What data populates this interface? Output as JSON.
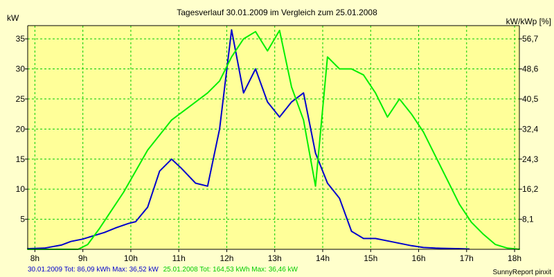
{
  "chart_data": {
    "type": "line",
    "title": "Tagesverlauf 30.01.2009 im Vergleich zum 25.01.2008",
    "ylabel_left": "kW",
    "ylabel_right": "kW/kWp [%]",
    "x_range": [
      7.85,
      18.1
    ],
    "ylim": [
      0,
      37.2
    ],
    "x_ticks": [
      {
        "value": 8,
        "label": "8h"
      },
      {
        "value": 9,
        "label": "9h"
      },
      {
        "value": 10,
        "label": "10h"
      },
      {
        "value": 11,
        "label": "11h"
      },
      {
        "value": 12,
        "label": "12h"
      },
      {
        "value": 13,
        "label": "13h"
      },
      {
        "value": 14,
        "label": "14h"
      },
      {
        "value": 15,
        "label": "15h"
      },
      {
        "value": 16,
        "label": "16h"
      },
      {
        "value": 17,
        "label": "17h"
      },
      {
        "value": 18,
        "label": "18h"
      }
    ],
    "y_ticks_left": [
      {
        "value": 5,
        "label": "5"
      },
      {
        "value": 10,
        "label": "10"
      },
      {
        "value": 15,
        "label": "15"
      },
      {
        "value": 20,
        "label": "20"
      },
      {
        "value": 25,
        "label": "25"
      },
      {
        "value": 30,
        "label": "30"
      },
      {
        "value": 35,
        "label": "35"
      }
    ],
    "y_ticks_right": [
      {
        "value": 5,
        "label": "8,1"
      },
      {
        "value": 10,
        "label": "16,2"
      },
      {
        "value": 15,
        "label": "24,3"
      },
      {
        "value": 20,
        "label": "32,4"
      },
      {
        "value": 25,
        "label": "40,5"
      },
      {
        "value": 30,
        "label": "48,6"
      },
      {
        "value": 35,
        "label": "56,7"
      }
    ],
    "series": [
      {
        "name": "30.01.2009",
        "color": "#0000cc",
        "x": [
          7.85,
          8.2,
          8.55,
          8.75,
          9.0,
          9.2,
          9.45,
          9.7,
          9.95,
          10.1,
          10.35,
          10.6,
          10.85,
          11.05,
          11.35,
          11.6,
          11.85,
          12.1,
          12.35,
          12.6,
          12.85,
          13.1,
          13.35,
          13.6,
          13.85,
          14.1,
          14.35,
          14.6,
          14.85,
          15.1,
          15.35,
          15.6,
          15.85,
          16.1,
          16.35,
          16.6,
          16.85,
          17.05
        ],
        "y": [
          0.1,
          0.2,
          0.7,
          1.3,
          1.7,
          2.2,
          2.8,
          3.6,
          4.3,
          4.6,
          7.0,
          13.0,
          15.0,
          13.5,
          11.0,
          10.5,
          20.0,
          36.5,
          26.0,
          30.0,
          24.5,
          22.0,
          24.5,
          26.0,
          16.0,
          11.0,
          8.5,
          3.0,
          1.8,
          1.8,
          1.4,
          1.0,
          0.6,
          0.3,
          0.2,
          0.15,
          0.1,
          0.05
        ]
      },
      {
        "name": "25.01.2008",
        "color": "#00ee00",
        "x": [
          7.85,
          8.9,
          9.1,
          9.35,
          9.6,
          9.85,
          10.1,
          10.35,
          10.6,
          10.85,
          11.1,
          11.35,
          11.6,
          11.85,
          12.1,
          12.35,
          12.6,
          12.85,
          13.1,
          13.35,
          13.6,
          13.85,
          14.1,
          14.35,
          14.6,
          14.85,
          15.1,
          15.35,
          15.6,
          15.85,
          16.1,
          16.35,
          16.6,
          16.85,
          17.1,
          17.35,
          17.6,
          17.85,
          18.1
        ],
        "y": [
          0,
          0,
          0.8,
          3.5,
          6.5,
          9.5,
          13.0,
          16.5,
          19.0,
          21.5,
          23.0,
          24.5,
          26.0,
          28.0,
          32.0,
          35.0,
          36.2,
          33.0,
          36.4,
          27.0,
          21.5,
          10.5,
          32.0,
          30.0,
          30.0,
          29.0,
          26.0,
          22.0,
          25.0,
          22.5,
          19.5,
          15.5,
          11.5,
          7.5,
          4.5,
          2.5,
          0.8,
          0.2,
          0
        ]
      }
    ],
    "footer": {
      "series1_text": "30.01.2009 Tot: 86,09 kWh Max: 36,52 kW",
      "series2_text": "25.01.2008 Tot: 164,53 kWh Max: 36,46 kW",
      "source_text": "SunnyReport pinxit"
    },
    "colors": {
      "background": "#ffffcc",
      "plot_background": "#ffff99",
      "grid": "#00cc00",
      "axis": "#000000"
    }
  }
}
